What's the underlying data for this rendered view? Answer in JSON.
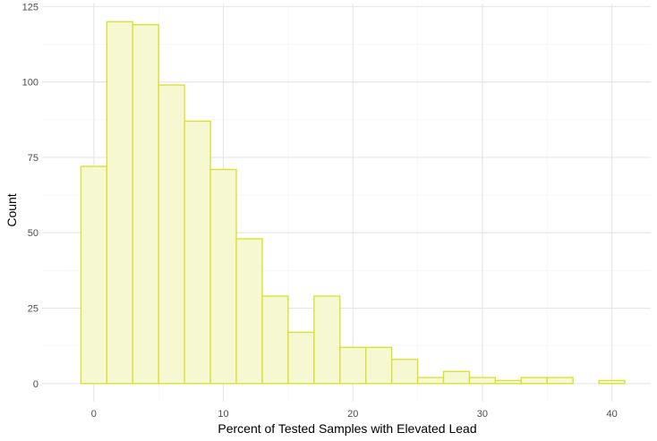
{
  "chart_data": {
    "type": "bar",
    "subtype": "histogram",
    "title": "",
    "xlabel": "Percent of Tested Samples with Elevated Lead",
    "ylabel": "Count",
    "bin_width": 2,
    "bins": [
      {
        "start": -1,
        "end": 1,
        "count": 72
      },
      {
        "start": 1,
        "end": 3,
        "count": 120
      },
      {
        "start": 3,
        "end": 5,
        "count": 119
      },
      {
        "start": 5,
        "end": 7,
        "count": 99
      },
      {
        "start": 7,
        "end": 9,
        "count": 87
      },
      {
        "start": 9,
        "end": 11,
        "count": 71
      },
      {
        "start": 11,
        "end": 13,
        "count": 48
      },
      {
        "start": 13,
        "end": 15,
        "count": 29
      },
      {
        "start": 15,
        "end": 17,
        "count": 17
      },
      {
        "start": 17,
        "end": 19,
        "count": 29
      },
      {
        "start": 19,
        "end": 21,
        "count": 12
      },
      {
        "start": 21,
        "end": 23,
        "count": 12
      },
      {
        "start": 23,
        "end": 25,
        "count": 8
      },
      {
        "start": 25,
        "end": 27,
        "count": 2
      },
      {
        "start": 27,
        "end": 29,
        "count": 4
      },
      {
        "start": 29,
        "end": 31,
        "count": 2
      },
      {
        "start": 31,
        "end": 33,
        "count": 1
      },
      {
        "start": 33,
        "end": 35,
        "count": 2
      },
      {
        "start": 35,
        "end": 37,
        "count": 2
      },
      {
        "start": 37,
        "end": 39,
        "count": 0
      },
      {
        "start": 39,
        "end": 41,
        "count": 1
      }
    ],
    "xlim": [
      -4,
      43
    ],
    "ylim": [
      -6,
      126
    ],
    "x_ticks": [
      0,
      10,
      20,
      30,
      40
    ],
    "x_tick_labels": [
      "0",
      "10",
      "20",
      "30",
      "40"
    ],
    "y_ticks": [
      0,
      25,
      50,
      75,
      100,
      125
    ],
    "y_tick_labels": [
      "0",
      "25",
      "50",
      "75",
      "100",
      "125"
    ],
    "grid": true,
    "legend": "none",
    "colors": {
      "bar_fill": "#f5f8d0",
      "bar_stroke": "#d8e02a",
      "grid_major": "#e6e6e6",
      "grid_minor": "#f2f2f2"
    }
  }
}
